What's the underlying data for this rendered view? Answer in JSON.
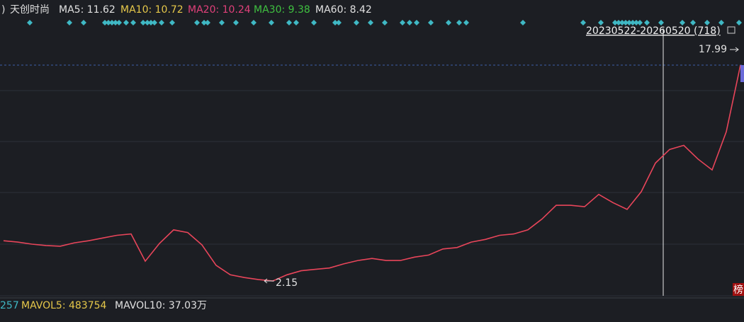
{
  "header": {
    "name": "天创时尚",
    "ma5": "MA5: 11.62",
    "ma10": "MA10: 10.72",
    "ma20": "MA20: 10.24",
    "ma30": "MA30: 9.38",
    "ma60": "MA60: 8.42"
  },
  "range_label": "20230522-20260520 (718)",
  "price": {
    "high": 17.99,
    "low": 2.15,
    "values": [
      5.1,
      5.0,
      4.85,
      4.75,
      4.7,
      4.95,
      5.1,
      5.3,
      5.5,
      5.6,
      3.6,
      4.9,
      5.9,
      5.7,
      4.8,
      3.3,
      2.6,
      2.4,
      2.25,
      2.15,
      2.6,
      2.9,
      3.0,
      3.1,
      3.4,
      3.65,
      3.8,
      3.65,
      3.65,
      3.9,
      4.05,
      4.5,
      4.6,
      5.0,
      5.2,
      5.5,
      5.6,
      5.9,
      6.7,
      7.7,
      7.7,
      7.6,
      8.5,
      7.9,
      7.4,
      8.7,
      10.8,
      11.8,
      12.1,
      11.1,
      10.3,
      13.1,
      17.99
    ]
  },
  "volume": {
    "partial": "257",
    "mavol5": "MAVOL5: 483754",
    "mavol10": "MAVOL10: 37.03万"
  },
  "badge": "榜"
}
